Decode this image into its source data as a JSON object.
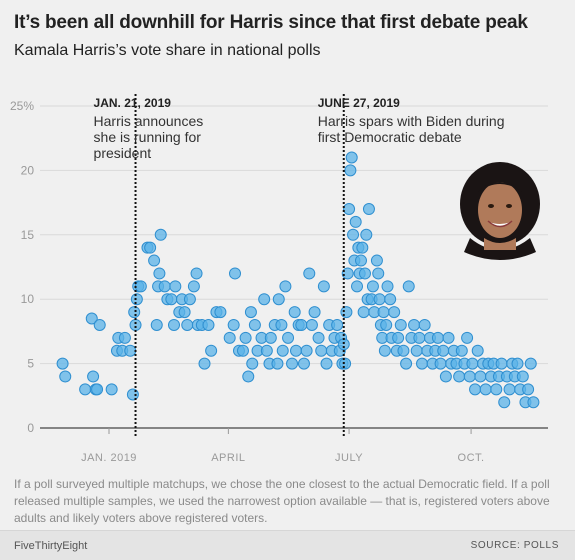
{
  "header": {
    "title": "It’s been all downhill for Harris since that first debate peak",
    "subtitle": "Kamala Harris’s vote share in national polls"
  },
  "notes": {
    "text": "If a poll surveyed multiple matchups, we chose the one closest to the actual Democratic field. If a poll released multiple samples, we used the narrowest option available — that is, registered voters above adults and likely voters above registered voters."
  },
  "footer": {
    "brand": "FiveThirtyEight",
    "source": "SOURCE: POLLS"
  },
  "colors": {
    "point_fill": "#5bb3e8",
    "point_stroke": "#2f8fd0",
    "grid": "#d9d9d9",
    "background": "#f0f0f0"
  },
  "portrait": {
    "icon": "harris-portrait-icon"
  },
  "chart_data": {
    "type": "scatter",
    "title": "It’s been all downhill for Harris since that first debate peak",
    "subtitle": "Kamala Harris’s vote share in national polls",
    "xlabel": "",
    "ylabel": "",
    "x_axis": {
      "type": "date",
      "range": [
        "2018-11-16",
        "2019-11-28"
      ],
      "ticks": [
        {
          "date": "2019-01-01",
          "label": "JAN. 2019"
        },
        {
          "date": "2019-04-01",
          "label": "APRIL"
        },
        {
          "date": "2019-07-01",
          "label": "JULY"
        },
        {
          "date": "2019-10-01",
          "label": "OCT."
        }
      ]
    },
    "y_axis": {
      "range": [
        0,
        25
      ],
      "ticks": [
        {
          "value": 0,
          "label": "0"
        },
        {
          "value": 5,
          "label": "5"
        },
        {
          "value": 10,
          "label": "10"
        },
        {
          "value": 15,
          "label": "15"
        },
        {
          "value": 20,
          "label": "20"
        },
        {
          "value": 25,
          "label": "25%"
        }
      ],
      "grid": true
    },
    "annotations": [
      {
        "date": "2019-01-21",
        "title": "JAN. 21, 2019",
        "lines": [
          "Harris announces",
          "she is running for",
          "president"
        ]
      },
      {
        "date": "2019-06-27",
        "title": "JUNE 27, 2019",
        "lines": [
          "Harris spars with Biden during",
          "first Democratic debate"
        ]
      }
    ],
    "series": [
      {
        "points": [
          [
            "2018-11-27",
            5
          ],
          [
            "2018-11-29",
            4
          ],
          [
            "2018-12-14",
            3
          ],
          [
            "2018-12-19",
            8.5
          ],
          [
            "2018-12-20",
            4
          ],
          [
            "2018-12-22",
            3
          ],
          [
            "2018-12-23",
            3
          ],
          [
            "2018-12-25",
            8
          ],
          [
            "2019-01-03",
            3
          ],
          [
            "2019-01-07",
            6
          ],
          [
            "2019-01-08",
            7
          ],
          [
            "2019-01-11",
            6
          ],
          [
            "2019-01-13",
            7
          ],
          [
            "2019-01-17",
            6
          ],
          [
            "2019-01-19",
            2.6
          ],
          [
            "2019-01-20",
            9
          ],
          [
            "2019-01-21",
            8
          ],
          [
            "2019-01-22",
            10
          ],
          [
            "2019-01-23",
            11
          ],
          [
            "2019-01-25",
            11
          ],
          [
            "2019-01-30",
            14
          ],
          [
            "2019-02-01",
            14
          ],
          [
            "2019-02-04",
            13
          ],
          [
            "2019-02-06",
            8
          ],
          [
            "2019-02-07",
            11
          ],
          [
            "2019-02-08",
            12
          ],
          [
            "2019-02-09",
            15
          ],
          [
            "2019-02-12",
            11
          ],
          [
            "2019-02-14",
            10
          ],
          [
            "2019-02-17",
            10
          ],
          [
            "2019-02-19",
            8
          ],
          [
            "2019-02-20",
            11
          ],
          [
            "2019-02-23",
            9
          ],
          [
            "2019-02-25",
            10
          ],
          [
            "2019-02-27",
            9
          ],
          [
            "2019-03-01",
            8
          ],
          [
            "2019-03-03",
            10
          ],
          [
            "2019-03-06",
            11
          ],
          [
            "2019-03-08",
            12
          ],
          [
            "2019-03-09",
            8
          ],
          [
            "2019-03-12",
            8
          ],
          [
            "2019-03-14",
            5
          ],
          [
            "2019-03-17",
            8
          ],
          [
            "2019-03-19",
            6
          ],
          [
            "2019-03-23",
            9
          ],
          [
            "2019-03-26",
            9
          ],
          [
            "2019-04-02",
            7
          ],
          [
            "2019-04-05",
            8
          ],
          [
            "2019-04-06",
            12
          ],
          [
            "2019-04-09",
            6
          ],
          [
            "2019-04-12",
            6
          ],
          [
            "2019-04-14",
            7
          ],
          [
            "2019-04-16",
            4
          ],
          [
            "2019-04-18",
            9
          ],
          [
            "2019-04-19",
            5
          ],
          [
            "2019-04-21",
            8
          ],
          [
            "2019-04-23",
            6
          ],
          [
            "2019-04-26",
            7
          ],
          [
            "2019-04-28",
            10
          ],
          [
            "2019-04-30",
            6
          ],
          [
            "2019-05-02",
            5
          ],
          [
            "2019-05-03",
            7
          ],
          [
            "2019-05-06",
            8
          ],
          [
            "2019-05-08",
            5
          ],
          [
            "2019-05-09",
            10
          ],
          [
            "2019-05-11",
            8
          ],
          [
            "2019-05-12",
            6
          ],
          [
            "2019-05-14",
            11
          ],
          [
            "2019-05-16",
            7
          ],
          [
            "2019-05-19",
            5
          ],
          [
            "2019-05-21",
            9
          ],
          [
            "2019-05-22",
            6
          ],
          [
            "2019-05-24",
            8
          ],
          [
            "2019-05-26",
            8
          ],
          [
            "2019-05-28",
            5
          ],
          [
            "2019-05-30",
            6
          ],
          [
            "2019-06-01",
            12
          ],
          [
            "2019-06-03",
            8
          ],
          [
            "2019-06-05",
            9
          ],
          [
            "2019-06-08",
            7
          ],
          [
            "2019-06-10",
            6
          ],
          [
            "2019-06-12",
            11
          ],
          [
            "2019-06-14",
            5
          ],
          [
            "2019-06-16",
            8
          ],
          [
            "2019-06-18",
            6
          ],
          [
            "2019-06-20",
            7
          ],
          [
            "2019-06-22",
            8
          ],
          [
            "2019-06-24",
            6
          ],
          [
            "2019-06-25",
            7
          ],
          [
            "2019-06-26",
            5
          ],
          [
            "2019-06-27",
            6.5
          ],
          [
            "2019-06-28",
            5
          ],
          [
            "2019-06-29",
            9
          ],
          [
            "2019-06-30",
            12
          ],
          [
            "2019-07-01",
            17
          ],
          [
            "2019-07-02",
            20
          ],
          [
            "2019-07-03",
            21
          ],
          [
            "2019-07-04",
            15
          ],
          [
            "2019-07-05",
            13
          ],
          [
            "2019-07-06",
            16
          ],
          [
            "2019-07-07",
            11
          ],
          [
            "2019-07-08",
            14
          ],
          [
            "2019-07-09",
            12
          ],
          [
            "2019-07-10",
            13
          ],
          [
            "2019-07-11",
            14
          ],
          [
            "2019-07-12",
            9
          ],
          [
            "2019-07-13",
            12
          ],
          [
            "2019-07-14",
            15
          ],
          [
            "2019-07-15",
            10
          ],
          [
            "2019-07-16",
            17
          ],
          [
            "2019-07-18",
            10
          ],
          [
            "2019-07-19",
            11
          ],
          [
            "2019-07-20",
            9
          ],
          [
            "2019-07-22",
            13
          ],
          [
            "2019-07-23",
            12
          ],
          [
            "2019-07-24",
            10
          ],
          [
            "2019-07-25",
            8
          ],
          [
            "2019-07-26",
            7
          ],
          [
            "2019-07-27",
            9
          ],
          [
            "2019-07-28",
            6
          ],
          [
            "2019-07-29",
            8
          ],
          [
            "2019-07-30",
            11
          ],
          [
            "2019-08-01",
            10
          ],
          [
            "2019-08-02",
            7
          ],
          [
            "2019-08-04",
            9
          ],
          [
            "2019-08-06",
            6
          ],
          [
            "2019-08-07",
            7
          ],
          [
            "2019-08-09",
            8
          ],
          [
            "2019-08-11",
            6
          ],
          [
            "2019-08-13",
            5
          ],
          [
            "2019-08-15",
            11
          ],
          [
            "2019-08-17",
            7
          ],
          [
            "2019-08-19",
            8
          ],
          [
            "2019-08-21",
            6
          ],
          [
            "2019-08-23",
            7
          ],
          [
            "2019-08-25",
            5
          ],
          [
            "2019-08-27",
            8
          ],
          [
            "2019-08-29",
            6
          ],
          [
            "2019-08-31",
            7
          ],
          [
            "2019-09-02",
            5
          ],
          [
            "2019-09-04",
            6
          ],
          [
            "2019-09-06",
            7
          ],
          [
            "2019-09-08",
            5
          ],
          [
            "2019-09-10",
            6
          ],
          [
            "2019-09-12",
            4
          ],
          [
            "2019-09-14",
            7
          ],
          [
            "2019-09-16",
            5
          ],
          [
            "2019-09-18",
            6
          ],
          [
            "2019-09-20",
            5
          ],
          [
            "2019-09-22",
            4
          ],
          [
            "2019-09-24",
            6
          ],
          [
            "2019-09-26",
            5
          ],
          [
            "2019-09-28",
            7
          ],
          [
            "2019-09-30",
            4
          ],
          [
            "2019-10-02",
            5
          ],
          [
            "2019-10-04",
            3
          ],
          [
            "2019-10-06",
            6
          ],
          [
            "2019-10-08",
            4
          ],
          [
            "2019-10-10",
            5
          ],
          [
            "2019-10-12",
            3
          ],
          [
            "2019-10-14",
            5
          ],
          [
            "2019-10-16",
            4
          ],
          [
            "2019-10-18",
            5
          ],
          [
            "2019-10-20",
            3
          ],
          [
            "2019-10-22",
            4
          ],
          [
            "2019-10-24",
            5
          ],
          [
            "2019-10-26",
            2
          ],
          [
            "2019-10-28",
            4
          ],
          [
            "2019-10-30",
            3
          ],
          [
            "2019-11-01",
            5
          ],
          [
            "2019-11-03",
            4
          ],
          [
            "2019-11-05",
            5
          ],
          [
            "2019-11-07",
            3
          ],
          [
            "2019-11-09",
            4
          ],
          [
            "2019-11-11",
            2
          ],
          [
            "2019-11-13",
            3
          ],
          [
            "2019-11-15",
            5
          ],
          [
            "2019-11-17",
            2
          ]
        ]
      }
    ]
  }
}
